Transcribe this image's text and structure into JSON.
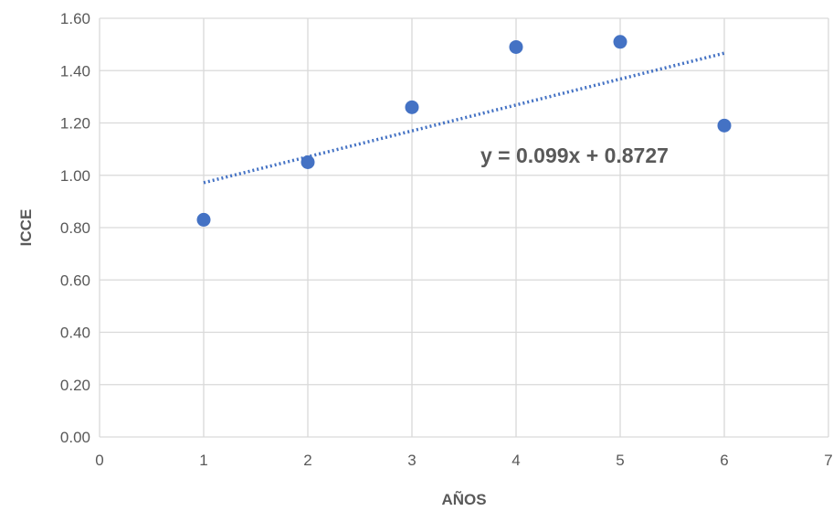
{
  "chart_data": {
    "type": "scatter",
    "title": "",
    "xlabel": "AÑOS",
    "ylabel": "ICCE",
    "xlim": [
      0,
      7
    ],
    "ylim": [
      0,
      1.6
    ],
    "x_ticks": [
      0,
      1,
      2,
      3,
      4,
      5,
      6,
      7
    ],
    "y_ticks": [
      "0.00",
      "0.20",
      "0.40",
      "0.60",
      "0.80",
      "1.00",
      "1.20",
      "1.40",
      "1.60"
    ],
    "grid": true,
    "series": [
      {
        "x": [
          1,
          2,
          3,
          4,
          5,
          6
        ],
        "y": [
          0.83,
          1.05,
          1.26,
          1.49,
          1.51,
          1.19
        ],
        "color": "#4472C4"
      }
    ],
    "trendline": {
      "type": "linear",
      "slope": 0.099,
      "intercept": 0.8727,
      "x_range": [
        1,
        6
      ],
      "style": "dotted",
      "color": "#4472C4",
      "equation_label": "y = 0.099x + 0.8727"
    }
  }
}
